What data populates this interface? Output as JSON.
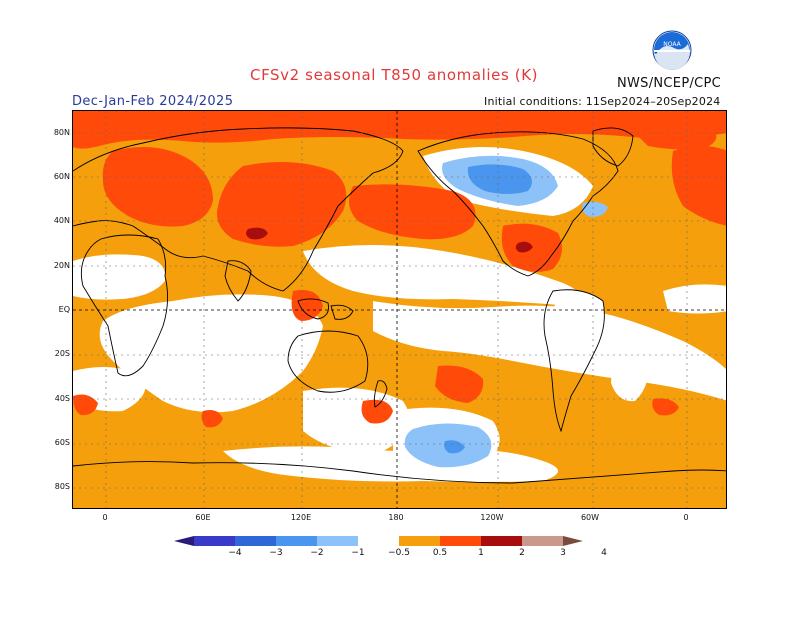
{
  "header": {
    "title": "CFSv2 seasonal T850 anomalies (K)",
    "period": "Dec-Jan-Feb 2024/2025",
    "initial_conditions": "Initial conditions: 11Sep2024–20Sep2024",
    "agency": "NWS/NCEP/CPC",
    "logo_text": "NOAA"
  },
  "map": {
    "lat_labels": [
      "80N",
      "60N",
      "40N",
      "20N",
      "EQ",
      "20S",
      "40S",
      "60S",
      "80S"
    ],
    "lon_labels": [
      "0",
      "60E",
      "120E",
      "180",
      "120W",
      "60W",
      "0"
    ]
  },
  "colorbar": {
    "ticks": [
      "−4",
      "−3",
      "−2",
      "−1",
      "−0.5",
      "0.5",
      "1",
      "2",
      "3",
      "4"
    ],
    "colors": [
      "#2a1a7a",
      "#3a3ac8",
      "#2e67d6",
      "#4a96ee",
      "#8cc2f8",
      "#ffffff",
      "#f59f0c",
      "#ff4a0a",
      "#a80d0d",
      "#c8998c",
      "#7a4a3c"
    ]
  }
}
